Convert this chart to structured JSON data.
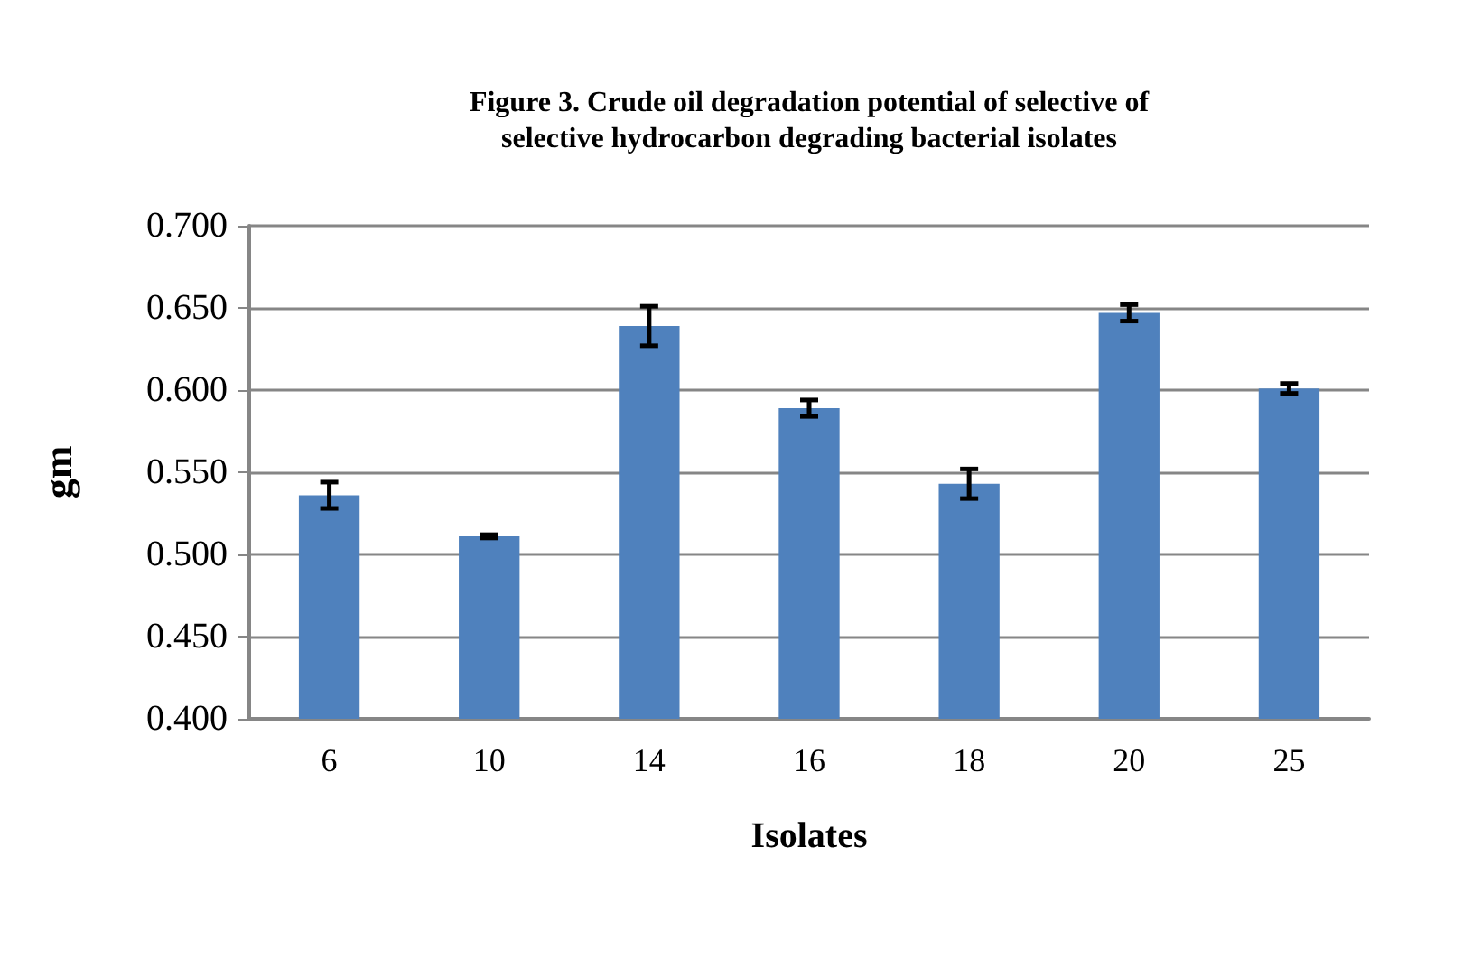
{
  "chart_data": {
    "type": "bar",
    "title": "Figure 3. Crude oil degradation potential of selective of\nselective hydrocarbon degrading bacterial isolates",
    "xlabel": "Isolates",
    "ylabel": "gm",
    "categories": [
      "6",
      "10",
      "14",
      "16",
      "18",
      "20",
      "25"
    ],
    "values": [
      0.536,
      0.511,
      0.639,
      0.589,
      0.543,
      0.647,
      0.601
    ],
    "errors": [
      0.008,
      0.001,
      0.012,
      0.005,
      0.009,
      0.005,
      0.003
    ],
    "color": "#4f81bd",
    "ylim": [
      0.4,
      0.7
    ],
    "yticks": [
      {
        "value": 0.4,
        "label": "0.400"
      },
      {
        "value": 0.45,
        "label": "0.450"
      },
      {
        "value": 0.5,
        "label": "0.500"
      },
      {
        "value": 0.55,
        "label": "0.550"
      },
      {
        "value": 0.6,
        "label": "0.600"
      },
      {
        "value": 0.65,
        "label": "0.650"
      },
      {
        "value": 0.7,
        "label": "0.700"
      }
    ],
    "grid": true
  }
}
